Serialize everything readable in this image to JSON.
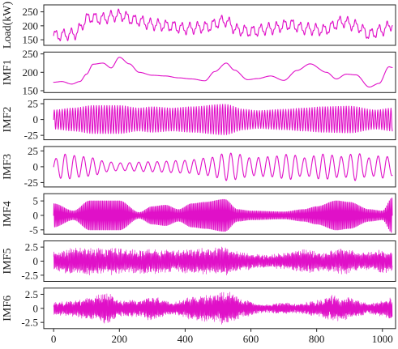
{
  "chart_data": {
    "type": "line",
    "title": "",
    "xlabel": "",
    "x_range": [
      -30,
      1040
    ],
    "x_ticks": [
      "0",
      "200",
      "400",
      "600",
      "800",
      "1000"
    ],
    "n_points": 1030,
    "series_color": "#e010c8",
    "grid": false,
    "legend": "none",
    "panels": [
      {
        "name": "load",
        "ylabel": "Load(kW)",
        "ylim": [
          130,
          275
        ],
        "yticks": [
          "150",
          "200",
          "250"
        ],
        "series": {
          "mean_envelope": [
            [
              0,
              165
            ],
            [
              60,
              170
            ],
            [
              110,
              230
            ],
            [
              140,
              225
            ],
            [
              200,
              238
            ],
            [
              250,
              220
            ],
            [
              300,
              205
            ],
            [
              350,
              200
            ],
            [
              400,
              190
            ],
            [
              460,
              195
            ],
            [
              520,
              218
            ],
            [
              560,
              185
            ],
            [
              600,
              180
            ],
            [
              660,
              190
            ],
            [
              720,
              205
            ],
            [
              760,
              190
            ],
            [
              820,
              185
            ],
            [
              880,
              215
            ],
            [
              920,
              200
            ],
            [
              960,
              170
            ],
            [
              1000,
              185
            ],
            [
              1030,
              205
            ]
          ],
          "oscillation_amplitude": 22
        }
      },
      {
        "name": "imf1",
        "ylabel": "IMF1",
        "ylim": [
          145,
          255
        ],
        "yticks": [
          "150",
          "200",
          "250"
        ],
        "series": {
          "points": [
            [
              0,
              173
            ],
            [
              25,
              175
            ],
            [
              55,
              168
            ],
            [
              80,
              175
            ],
            [
              100,
              195
            ],
            [
              120,
              222
            ],
            [
              150,
              225
            ],
            [
              175,
              212
            ],
            [
              200,
              241
            ],
            [
              230,
              223
            ],
            [
              260,
              200
            ],
            [
              300,
              192
            ],
            [
              340,
              190
            ],
            [
              380,
              185
            ],
            [
              420,
              182
            ],
            [
              460,
              177
            ],
            [
              490,
              202
            ],
            [
              525,
              225
            ],
            [
              550,
              206
            ],
            [
              590,
              180
            ],
            [
              620,
              183
            ],
            [
              660,
              190
            ],
            [
              700,
              178
            ],
            [
              740,
              205
            ],
            [
              780,
              223
            ],
            [
              830,
              200
            ],
            [
              860,
              182
            ],
            [
              890,
              195
            ],
            [
              920,
              193
            ],
            [
              960,
              160
            ],
            [
              990,
              170
            ],
            [
              1020,
              215
            ],
            [
              1030,
              213
            ]
          ]
        }
      },
      {
        "name": "imf2",
        "ylabel": "IMF2",
        "ylim": [
          -32,
          32
        ],
        "yticks": [
          "25",
          "0",
          "-25"
        ],
        "series": {
          "amplitude_envelope": [
            [
              0,
              15
            ],
            [
              60,
              18
            ],
            [
              120,
              22
            ],
            [
              200,
              22
            ],
            [
              260,
              18
            ],
            [
              300,
              20
            ],
            [
              360,
              18
            ],
            [
              420,
              20
            ],
            [
              520,
              24
            ],
            [
              580,
              16
            ],
            [
              620,
              14
            ],
            [
              700,
              16
            ],
            [
              760,
              18
            ],
            [
              820,
              20
            ],
            [
              900,
              21
            ],
            [
              980,
              15
            ],
            [
              1030,
              18
            ]
          ],
          "period": 8
        }
      },
      {
        "name": "imf3",
        "ylabel": "IMF3",
        "ylim": [
          -32,
          32
        ],
        "yticks": [
          "25",
          "0",
          "-25"
        ],
        "series": {
          "amplitude_envelope": [
            [
              0,
              12
            ],
            [
              30,
              20
            ],
            [
              90,
              16
            ],
            [
              120,
              14
            ],
            [
              160,
              8
            ],
            [
              200,
              6
            ],
            [
              300,
              8
            ],
            [
              400,
              10
            ],
            [
              470,
              14
            ],
            [
              530,
              22
            ],
            [
              560,
              20
            ],
            [
              600,
              14
            ],
            [
              660,
              16
            ],
            [
              720,
              20
            ],
            [
              760,
              14
            ],
            [
              820,
              20
            ],
            [
              880,
              16
            ],
            [
              920,
              22
            ],
            [
              960,
              14
            ],
            [
              1000,
              18
            ],
            [
              1030,
              14
            ]
          ],
          "period": 28
        }
      },
      {
        "name": "imf4",
        "ylabel": "IMF4",
        "ylim": [
          -6.5,
          7.5
        ],
        "yticks": [
          "5",
          "0",
          "-5"
        ],
        "series": {
          "amplitude_envelope": [
            [
              0,
              4
            ],
            [
              60,
              1.5
            ],
            [
              110,
              5
            ],
            [
              200,
              5
            ],
            [
              260,
              1
            ],
            [
              300,
              3
            ],
            [
              340,
              3.5
            ],
            [
              380,
              2
            ],
            [
              420,
              4
            ],
            [
              460,
              4.5
            ],
            [
              520,
              5.5
            ],
            [
              560,
              2
            ],
            [
              600,
              1.5
            ],
            [
              700,
              1.2
            ],
            [
              760,
              2
            ],
            [
              800,
              3
            ],
            [
              860,
              5
            ],
            [
              900,
              4.5
            ],
            [
              960,
              2
            ],
            [
              1000,
              1.5
            ],
            [
              1030,
              6
            ]
          ],
          "period": 4
        }
      },
      {
        "name": "imf5",
        "ylabel": "IMF5",
        "ylim": [
          -3.6,
          3.6
        ],
        "yticks": [
          "2.5",
          "0",
          "-2.5"
        ],
        "series": {
          "amplitude_envelope": [
            [
              0,
              1.8
            ],
            [
              80,
              2.6
            ],
            [
              160,
              2.5
            ],
            [
              230,
              2.2
            ],
            [
              300,
              2.4
            ],
            [
              360,
              2
            ],
            [
              420,
              2.3
            ],
            [
              520,
              2.6
            ],
            [
              580,
              1.6
            ],
            [
              640,
              1.2
            ],
            [
              700,
              1.5
            ],
            [
              760,
              2.2
            ],
            [
              820,
              1.8
            ],
            [
              880,
              2.4
            ],
            [
              940,
              1.6
            ],
            [
              1000,
              2.2
            ],
            [
              1030,
              2
            ]
          ],
          "period": 2.3
        }
      },
      {
        "name": "imf6",
        "ylabel": "IMF6",
        "ylim": [
          -3.6,
          3.6
        ],
        "yticks": [
          "2.5",
          "0",
          "-2.5"
        ],
        "series": {
          "amplitude_envelope": [
            [
              0,
              1.2
            ],
            [
              60,
              1.5
            ],
            [
              120,
              2.2
            ],
            [
              160,
              3
            ],
            [
              200,
              1.4
            ],
            [
              260,
              1.6
            ],
            [
              300,
              2.2
            ],
            [
              360,
              1.2
            ],
            [
              420,
              2
            ],
            [
              480,
              2.6
            ],
            [
              530,
              3.2
            ],
            [
              580,
              1.5
            ],
            [
              640,
              0.8
            ],
            [
              700,
              1
            ],
            [
              740,
              0.9
            ],
            [
              800,
              1.5
            ],
            [
              850,
              2.4
            ],
            [
              900,
              2
            ],
            [
              960,
              1
            ],
            [
              1000,
              1.6
            ],
            [
              1030,
              2
            ]
          ],
          "period": 2.1
        }
      }
    ]
  }
}
